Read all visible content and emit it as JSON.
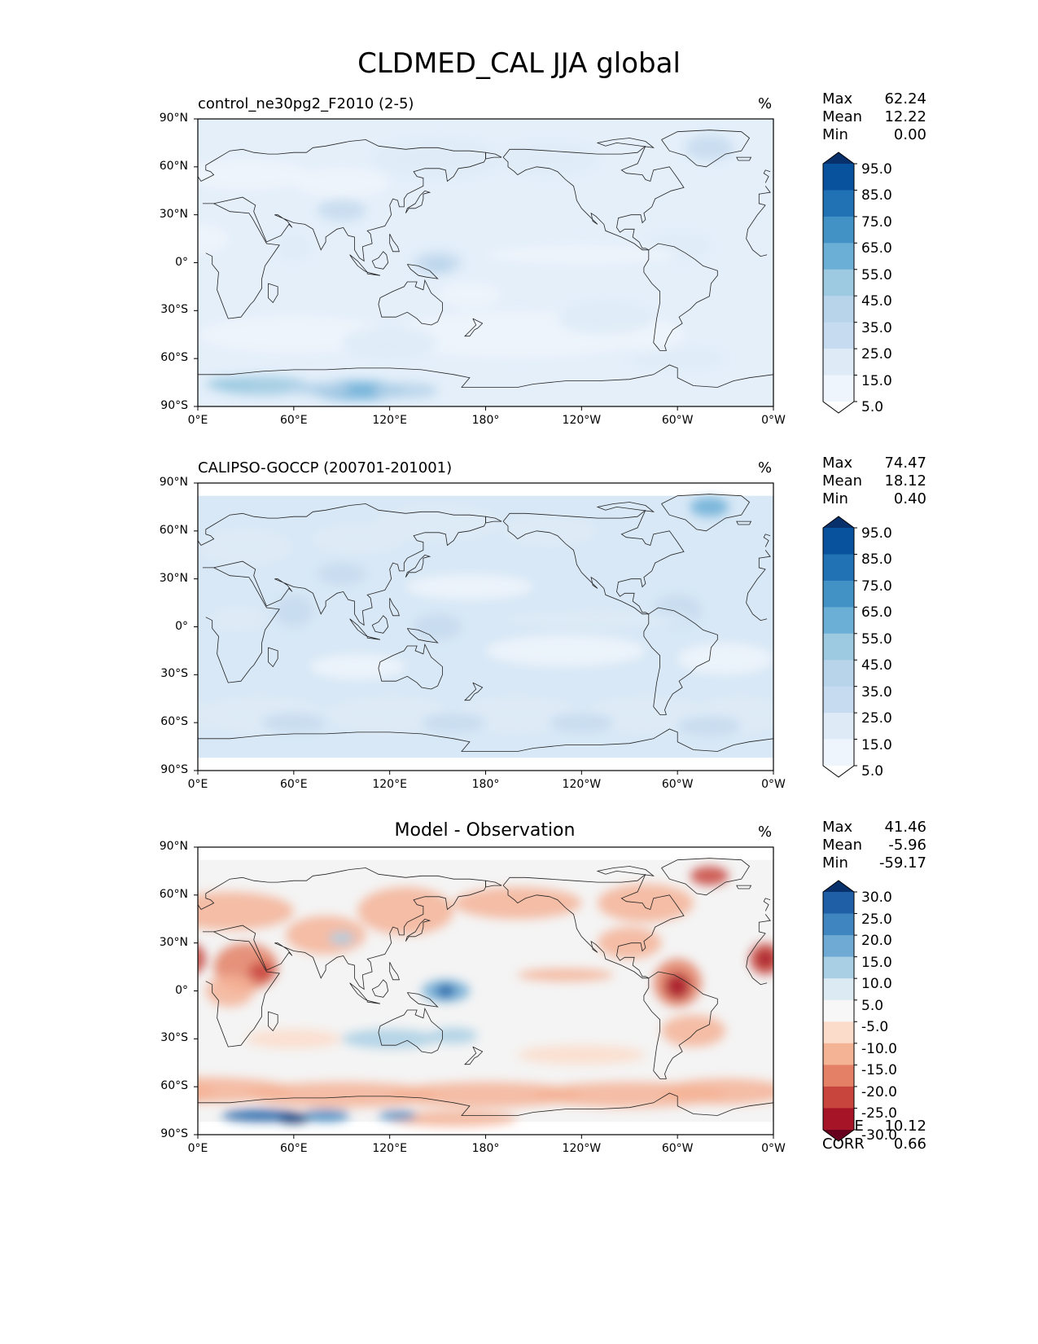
{
  "figure": {
    "title": "CLDMED_CAL JJA global"
  },
  "panels": [
    {
      "title": "control_ne30pg2_F2010 (2-5)",
      "title_style": "left",
      "unit": "%",
      "stats": [
        {
          "label": "Max",
          "value": "62.24"
        },
        {
          "label": "Mean",
          "value": "12.22"
        },
        {
          "label": "Min",
          "value": "0.00"
        }
      ],
      "colorbar": {
        "labels": [
          "95.0",
          "85.0",
          "75.0",
          "65.0",
          "55.0",
          "45.0",
          "35.0",
          "25.0",
          "15.0",
          "5.0"
        ],
        "colors": [
          "#08306b",
          "#08519c",
          "#2171b5",
          "#4292c6",
          "#6baed6",
          "#9ecae1",
          "#b7d4ea",
          "#c6dbef",
          "#deebf7",
          "#eef5fc",
          "#ffffff"
        ]
      }
    },
    {
      "title": "CALIPSO-GOCCP (200701-201001)",
      "title_style": "left",
      "unit": "%",
      "stats": [
        {
          "label": "Max",
          "value": "74.47"
        },
        {
          "label": "Mean",
          "value": "18.12"
        },
        {
          "label": "Min",
          "value": "0.40"
        }
      ],
      "colorbar": {
        "labels": [
          "95.0",
          "85.0",
          "75.0",
          "65.0",
          "55.0",
          "45.0",
          "35.0",
          "25.0",
          "15.0",
          "5.0"
        ],
        "colors": [
          "#08306b",
          "#08519c",
          "#2171b5",
          "#4292c6",
          "#6baed6",
          "#9ecae1",
          "#b7d4ea",
          "#c6dbef",
          "#deebf7",
          "#eef5fc",
          "#ffffff"
        ]
      }
    },
    {
      "title": "Model - Observation",
      "title_style": "center",
      "unit": "%",
      "stats": [
        {
          "label": "Max",
          "value": "41.46"
        },
        {
          "label": "Mean",
          "value": "-5.96"
        },
        {
          "label": "Min",
          "value": "-59.17"
        }
      ],
      "extra_stats": [
        {
          "label": "RMSE",
          "value": "10.12"
        },
        {
          "label": "CORR",
          "value": "0.66"
        }
      ],
      "colorbar": {
        "labels": [
          "30.0",
          "25.0",
          "20.0",
          "15.0",
          "10.0",
          "5.0",
          "-5.0",
          "-10.0",
          "-15.0",
          "-20.0",
          "-25.0",
          "-30.0"
        ],
        "colors": [
          "#08306b",
          "#1f5fa6",
          "#3f86c0",
          "#6eaad3",
          "#a8cfe4",
          "#dbeaf3",
          "#f7f7f7",
          "#fbdcca",
          "#f5b396",
          "#e38065",
          "#c8453d",
          "#a51427",
          "#67001f"
        ]
      }
    }
  ],
  "axes": {
    "lat_ticks": [
      "90°N",
      "60°N",
      "30°N",
      "0°",
      "30°S",
      "60°S",
      "90°S"
    ],
    "lon_ticks": [
      "0°E",
      "60°E",
      "120°E",
      "180°",
      "120°W",
      "60°W",
      "0°W"
    ]
  },
  "colors": {
    "ocean_base_model": "#e4effa",
    "ocean_base_obs": "#d8e8f6",
    "diff_neutral": "#f4f4f4",
    "coastline": "#222222"
  }
}
